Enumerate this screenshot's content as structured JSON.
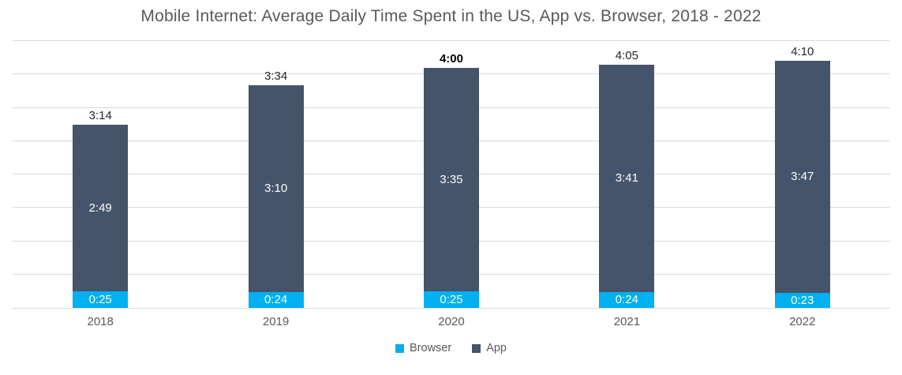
{
  "chart_data": {
    "type": "bar",
    "stacked": true,
    "title": "Mobile Internet: Average Daily Time Spent in the US, App vs. Browser, 2018 - 2022",
    "categories": [
      "2018",
      "2019",
      "2020",
      "2021",
      "2022"
    ],
    "series": [
      {
        "name": "Browser",
        "color": "#00B0F0",
        "values": [
          "0:25",
          "0:24",
          "0:25",
          "0:24",
          "0:23"
        ]
      },
      {
        "name": "App",
        "color": "#44546A",
        "values": [
          "2:49",
          "3:10",
          "3:35",
          "3:41",
          "3:47"
        ]
      }
    ],
    "totals": [
      "3:14",
      "3:34",
      "4:00",
      "4:05",
      "4:10"
    ],
    "bold_total_index": 2,
    "xlabel": "",
    "ylabel": "",
    "y_tick_labels": [],
    "grid": true,
    "gridline_count": 8,
    "legend_position": "bottom",
    "legend": [
      "Browser",
      "App"
    ],
    "colors": {
      "gridline": "#D9D9D9",
      "axis_line": "#D9D9D9",
      "title_text": "#595959",
      "axis_text": "#595959",
      "total_label_text": "#262626",
      "bold_total_label_text": "#000000",
      "inside_label_text": "#FFFFFF",
      "background": "#FFFFFF"
    }
  }
}
